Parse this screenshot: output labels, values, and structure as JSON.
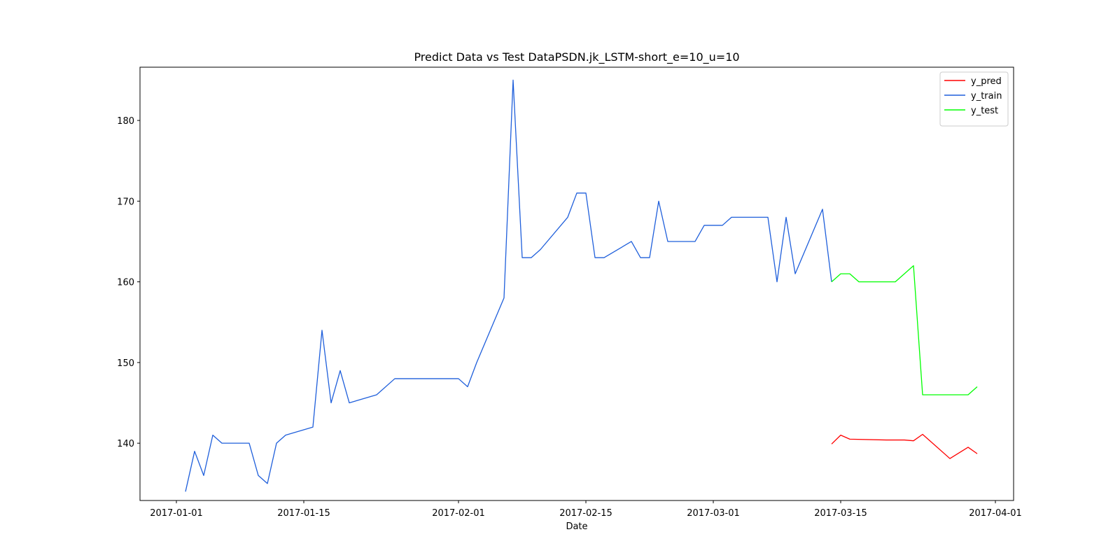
{
  "chart_data": {
    "type": "line",
    "title": "Predict Data vs Test DataPSDN.jk_LSTM-short_e=10_u=10",
    "xlabel": "Date",
    "ylabel": "",
    "x_type": "date",
    "xlim": [
      "2016-12-28",
      "2017-04-03"
    ],
    "ylim": [
      132.9,
      186.6
    ],
    "x_ticks": [
      "2017-01-01",
      "2017-01-15",
      "2017-02-01",
      "2017-02-15",
      "2017-03-01",
      "2017-03-15",
      "2017-04-01"
    ],
    "y_ticks": [
      140,
      150,
      160,
      170,
      180
    ],
    "legend_position": "upper right",
    "grid": false,
    "series": [
      {
        "name": "y_pred",
        "color": "#ff0000",
        "points": [
          [
            "2017-03-14",
            139.9
          ],
          [
            "2017-03-15",
            141.0
          ],
          [
            "2017-03-16",
            140.5
          ],
          [
            "2017-03-20",
            140.4
          ],
          [
            "2017-03-21",
            140.4
          ],
          [
            "2017-03-22",
            140.4
          ],
          [
            "2017-03-23",
            140.3
          ],
          [
            "2017-03-24",
            141.1
          ],
          [
            "2017-03-27",
            138.1
          ],
          [
            "2017-03-29",
            139.5
          ],
          [
            "2017-03-30",
            138.7
          ]
        ]
      },
      {
        "name": "y_train",
        "color": "#1f5fdb",
        "points": [
          [
            "2017-01-02",
            134
          ],
          [
            "2017-01-03",
            139
          ],
          [
            "2017-01-04",
            136
          ],
          [
            "2017-01-05",
            141
          ],
          [
            "2017-01-06",
            140
          ],
          [
            "2017-01-09",
            140
          ],
          [
            "2017-01-10",
            136
          ],
          [
            "2017-01-11",
            135
          ],
          [
            "2017-01-12",
            140
          ],
          [
            "2017-01-13",
            141
          ],
          [
            "2017-01-16",
            142
          ],
          [
            "2017-01-17",
            154
          ],
          [
            "2017-01-18",
            145
          ],
          [
            "2017-01-19",
            149
          ],
          [
            "2017-01-20",
            145
          ],
          [
            "2017-01-23",
            146
          ],
          [
            "2017-01-25",
            148
          ],
          [
            "2017-02-01",
            148
          ],
          [
            "2017-02-02",
            147
          ],
          [
            "2017-02-03",
            150
          ],
          [
            "2017-02-06",
            158
          ],
          [
            "2017-02-07",
            185
          ],
          [
            "2017-02-08",
            163
          ],
          [
            "2017-02-09",
            163
          ],
          [
            "2017-02-10",
            164
          ],
          [
            "2017-02-13",
            168
          ],
          [
            "2017-02-14",
            171
          ],
          [
            "2017-02-15",
            171
          ],
          [
            "2017-02-16",
            163
          ],
          [
            "2017-02-17",
            163
          ],
          [
            "2017-02-20",
            165
          ],
          [
            "2017-02-21",
            163
          ],
          [
            "2017-02-22",
            163
          ],
          [
            "2017-02-23",
            170
          ],
          [
            "2017-02-24",
            165
          ],
          [
            "2017-02-27",
            165
          ],
          [
            "2017-02-28",
            167
          ],
          [
            "2017-03-02",
            167
          ],
          [
            "2017-03-03",
            168
          ],
          [
            "2017-03-07",
            168
          ],
          [
            "2017-03-08",
            160
          ],
          [
            "2017-03-09",
            168
          ],
          [
            "2017-03-10",
            161
          ],
          [
            "2017-03-13",
            169
          ],
          [
            "2017-03-14",
            160
          ]
        ]
      },
      {
        "name": "y_test",
        "color": "#00ff00",
        "points": [
          [
            "2017-03-14",
            160
          ],
          [
            "2017-03-15",
            161
          ],
          [
            "2017-03-16",
            161
          ],
          [
            "2017-03-17",
            160
          ],
          [
            "2017-03-21",
            160
          ],
          [
            "2017-03-23",
            162
          ],
          [
            "2017-03-24",
            146
          ],
          [
            "2017-03-29",
            146
          ],
          [
            "2017-03-30",
            147
          ]
        ]
      }
    ]
  }
}
